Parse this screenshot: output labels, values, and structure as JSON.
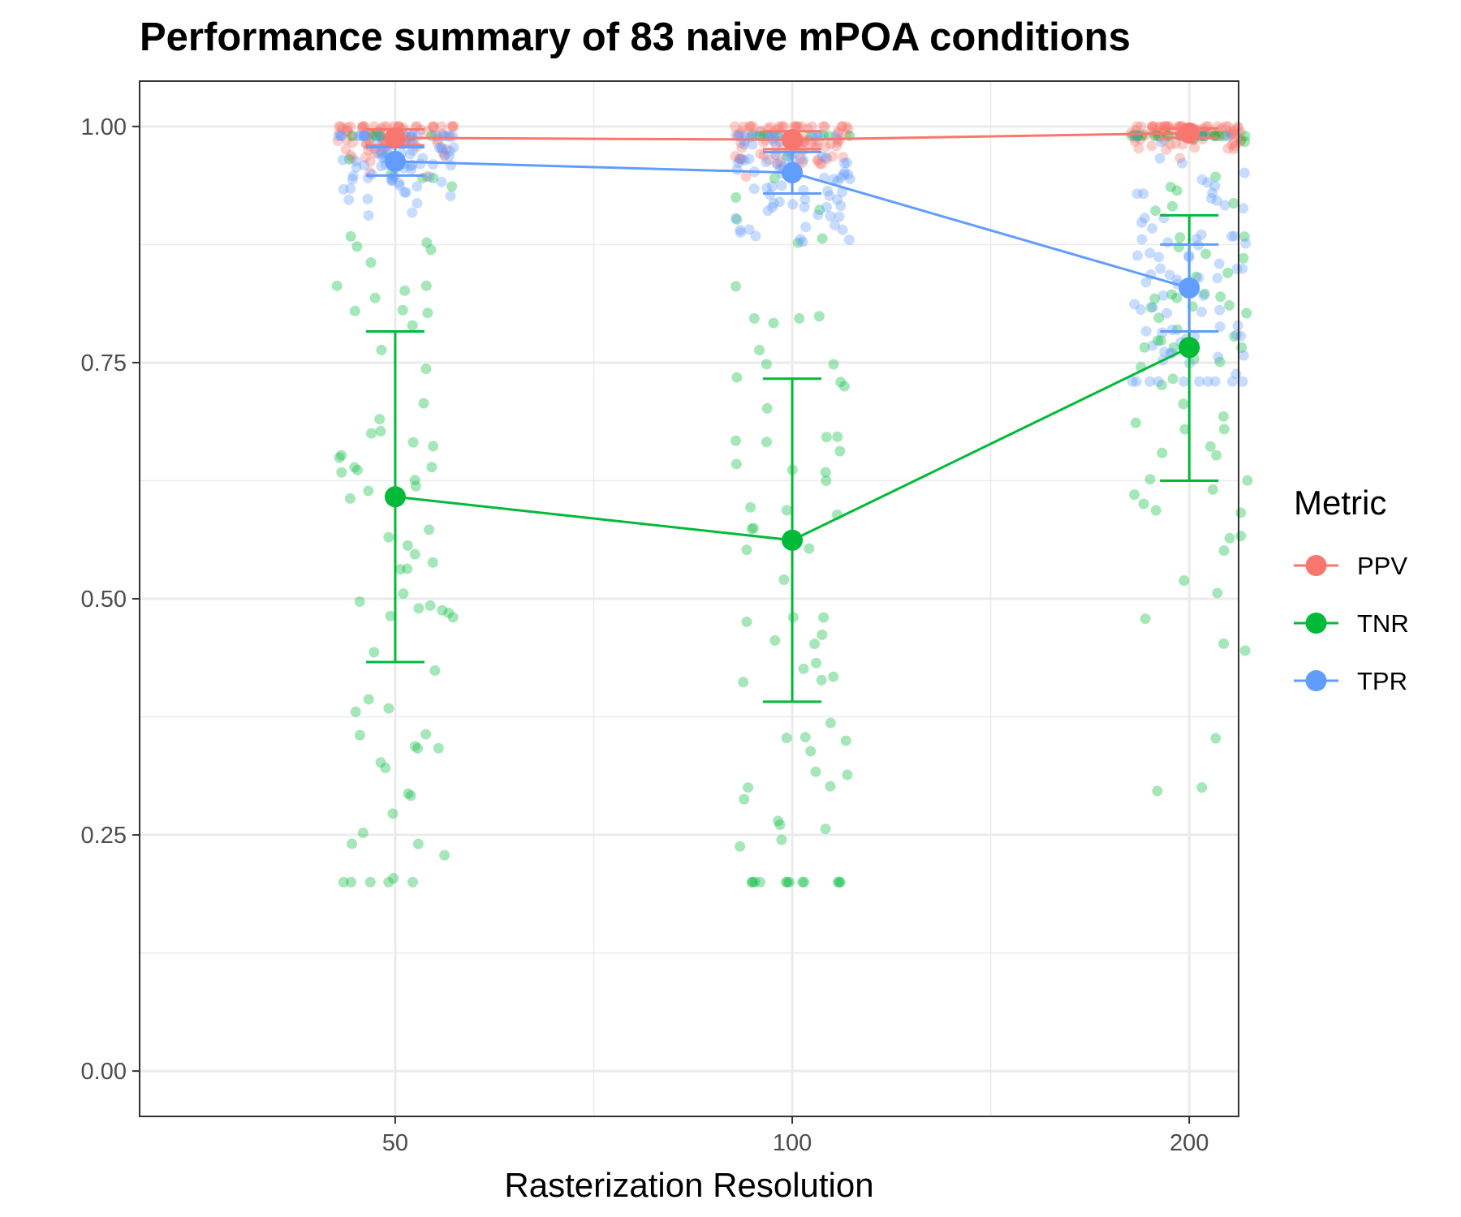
{
  "chart_data": {
    "type": "scatter",
    "title": "Performance summary of 83 naive mPOA conditions",
    "xlabel": "Rasterization Resolution",
    "ylabel": "",
    "x_ticks": [
      "50",
      "100",
      "200"
    ],
    "x_values": [
      50,
      100,
      200
    ],
    "xlim": [
      32,
      218
    ],
    "y_ticks": [
      "0.00",
      "0.25",
      "0.50",
      "0.75",
      "1.00"
    ],
    "ylim": [
      -0.048,
      1.048
    ],
    "grid": true,
    "legend": {
      "title": "Metric",
      "position": "right"
    },
    "series": [
      {
        "name": "PPV",
        "color": "#F8766D",
        "x": [
          50,
          100,
          200
        ],
        "mean": [
          0.988,
          0.986,
          0.993
        ],
        "error_low": [
          0.98,
          0.976,
          0.988
        ],
        "error_high": [
          0.997,
          0.995,
          0.998
        ],
        "points_range": [
          0.94,
          1.0
        ]
      },
      {
        "name": "TNR",
        "color": "#00BA38",
        "x": [
          50,
          100,
          200
        ],
        "mean": [
          0.608,
          0.562,
          0.766
        ],
        "error_low": [
          0.433,
          0.391,
          0.625
        ],
        "error_high": [
          0.783,
          0.733,
          0.906
        ],
        "points_range": [
          0.2,
          0.99
        ]
      },
      {
        "name": "TPR",
        "color": "#619CFF",
        "x": [
          50,
          100,
          200
        ],
        "mean": [
          0.963,
          0.951,
          0.829
        ],
        "error_low": [
          0.948,
          0.929,
          0.783
        ],
        "error_high": [
          0.978,
          0.973,
          0.875
        ],
        "points_range": [
          0.73,
          0.99
        ]
      }
    ]
  }
}
